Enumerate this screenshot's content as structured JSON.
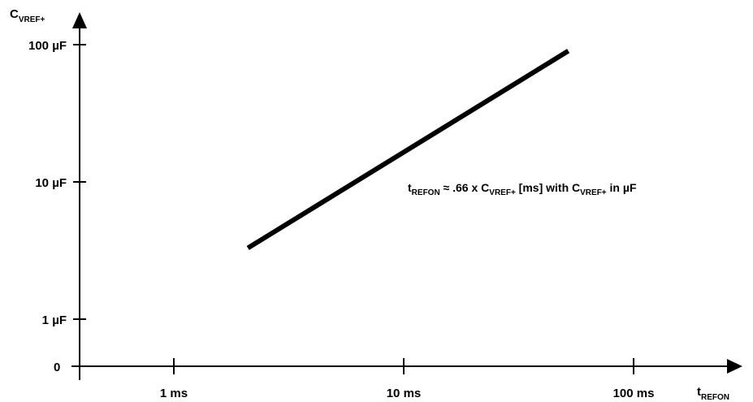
{
  "chart_data": {
    "type": "line",
    "title": "",
    "x_axis": {
      "label_main": "t",
      "label_sub": "REFON",
      "scale": "log",
      "ticks": [
        {
          "value": 1,
          "label": "1 ms"
        },
        {
          "value": 10,
          "label": "10 ms"
        },
        {
          "value": 100,
          "label": "100 ms"
        }
      ]
    },
    "y_axis": {
      "label_main": "C",
      "label_sub": "VREF+",
      "scale": "log",
      "zero_label": "0",
      "ticks": [
        {
          "value": 1,
          "label_num": "1",
          "label_unit": "µF"
        },
        {
          "value": 10,
          "label_num": "10",
          "label_unit": "µF"
        },
        {
          "value": 100,
          "label_num": "100",
          "label_unit": "µF"
        }
      ]
    },
    "series": [
      {
        "x": [
          2.1,
          52
        ],
        "y": [
          3.3,
          90
        ],
        "color": "#000000"
      }
    ],
    "annotation": {
      "p1": "t",
      "p1_sub": "REFON",
      "p2": " ≈ .66 x C",
      "p2_sub": "VREF+",
      "p3": " [ms]  with C",
      "p3_sub": "VREF+",
      "p4": " in µF"
    },
    "grid": false,
    "legend": "none"
  }
}
